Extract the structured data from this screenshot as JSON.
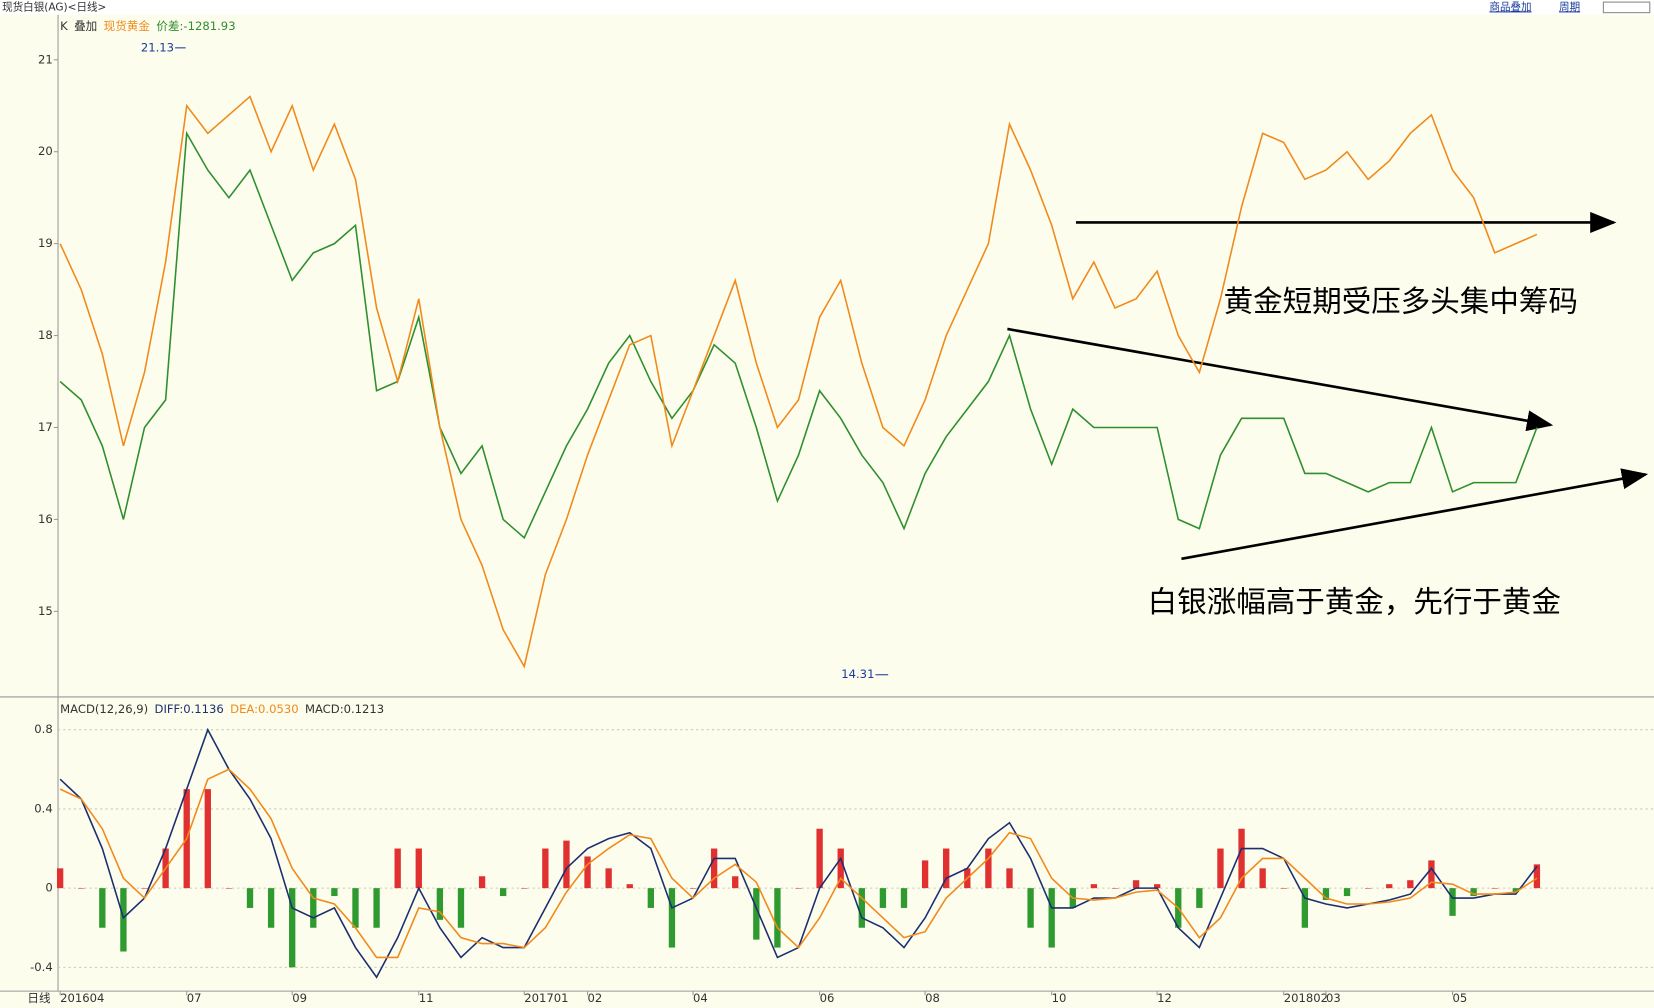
{
  "header": {
    "title": "现货白银(AG)<日线>",
    "buttons": [
      "商品叠加",
      "周期"
    ],
    "period_label": "日线"
  },
  "annotations": [
    "黄金短期受压多头集中筹码",
    "白银涨幅高于黄金，先行于黄金"
  ],
  "chart_data": [
    {
      "type": "line",
      "legend": [
        "K",
        "叠加",
        "现货黄金",
        "价差:-1281.93"
      ],
      "high_label": 21.13,
      "low_label": 14.31,
      "ylim": [
        14.08,
        21.49
      ],
      "yticks": [
        15,
        16,
        17,
        18,
        19,
        20,
        21
      ],
      "series": [
        {
          "color": "#2f8f2f",
          "values": [
            17.5,
            17.3,
            16.8,
            16.0,
            17.0,
            17.3,
            20.2,
            19.8,
            19.5,
            19.8,
            19.2,
            18.6,
            18.9,
            19.0,
            19.2,
            17.4,
            17.5,
            18.2,
            17.0,
            16.5,
            16.8,
            16.0,
            15.8,
            16.3,
            16.8,
            17.2,
            17.7,
            18.0,
            17.5,
            17.1,
            17.4,
            17.9,
            17.7,
            17.0,
            16.2,
            16.7,
            17.4,
            17.1,
            16.7,
            16.4,
            15.9,
            16.5,
            16.9,
            17.2,
            17.5,
            18.0,
            17.2,
            16.6,
            17.2,
            17.0,
            17.0,
            17.0,
            17.0,
            16.0,
            15.9,
            16.7,
            17.1,
            17.1,
            17.1,
            16.5,
            16.5,
            16.4,
            16.3,
            16.4,
            16.4,
            17.0,
            16.3,
            16.4,
            16.4,
            16.4,
            17.0,
            null,
            null,
            null,
            null,
            null
          ]
        },
        {
          "color": "#f08a1c",
          "values": [
            19.0,
            18.5,
            17.8,
            16.8,
            17.6,
            18.8,
            20.5,
            20.2,
            20.4,
            20.6,
            20.0,
            20.5,
            19.8,
            20.3,
            19.7,
            18.3,
            17.5,
            18.4,
            17.0,
            16.0,
            15.5,
            14.8,
            14.4,
            15.4,
            16.0,
            16.7,
            17.3,
            17.9,
            18.0,
            16.8,
            17.4,
            18.0,
            18.6,
            17.7,
            17.0,
            17.3,
            18.2,
            18.6,
            17.7,
            17.0,
            16.8,
            17.3,
            18.0,
            18.5,
            19.0,
            20.3,
            19.8,
            19.2,
            18.4,
            18.8,
            18.3,
            18.4,
            18.7,
            18.0,
            17.6,
            18.4,
            19.4,
            20.2,
            20.1,
            19.7,
            19.8,
            20.0,
            19.7,
            19.9,
            20.2,
            20.4,
            19.8,
            19.5,
            18.9,
            19.0,
            19.1,
            null,
            null,
            null,
            null,
            null
          ]
        }
      ]
    },
    {
      "type": "macd",
      "legend": [
        "MACD(12,26,9)",
        "DIFF:0.1136",
        "DEA:0.0530",
        "MACD:0.1213"
      ],
      "categories": [
        "201604",
        null,
        null,
        null,
        null,
        null,
        "07",
        null,
        null,
        null,
        null,
        "09",
        null,
        null,
        null,
        null,
        null,
        "11",
        null,
        null,
        null,
        null,
        "201701",
        null,
        null,
        "02",
        null,
        null,
        null,
        null,
        "04",
        null,
        null,
        null,
        null,
        null,
        "06",
        null,
        null,
        null,
        null,
        "08",
        null,
        null,
        null,
        null,
        null,
        "10",
        null,
        null,
        null,
        null,
        "12",
        null,
        null,
        null,
        null,
        null,
        "201802",
        null,
        "03",
        null,
        null,
        null,
        null,
        null,
        "05",
        null,
        null,
        null,
        null,
        null,
        null,
        null,
        null,
        null
      ],
      "ylim": [
        -0.52,
        0.96
      ],
      "yticks": [
        -0.4,
        0,
        0.4,
        0.8
      ],
      "grid": true,
      "up_color": "#e03030",
      "down_color": "#2f9a2f",
      "series": [
        {
          "color": "#1c2f70",
          "values": [
            0.55,
            0.45,
            0.2,
            -0.15,
            -0.05,
            0.2,
            0.5,
            0.8,
            0.6,
            0.45,
            0.25,
            -0.1,
            -0.15,
            -0.1,
            -0.3,
            -0.45,
            -0.25,
            0,
            -0.2,
            -0.35,
            -0.25,
            -0.3,
            -0.3,
            -0.1,
            0.1,
            0.2,
            0.25,
            0.28,
            0.2,
            -0.1,
            -0.05,
            0.15,
            0.15,
            -0.1,
            -0.35,
            -0.3,
            0,
            0.15,
            -0.15,
            -0.2,
            -0.3,
            -0.15,
            0.05,
            0.1,
            0.25,
            0.33,
            0.15,
            -0.1,
            -0.1,
            -0.05,
            -0.05,
            0,
            0,
            -0.2,
            -0.3,
            -0.05,
            0.2,
            0.2,
            0.15,
            -0.05,
            -0.08,
            -0.1,
            -0.08,
            -0.06,
            -0.03,
            0.1,
            -0.05,
            -0.05,
            -0.03,
            -0.03,
            0.11,
            null,
            null,
            null,
            null,
            null
          ]
        },
        {
          "color": "#f08a1c",
          "values": [
            0.5,
            0.45,
            0.3,
            0.05,
            -0.05,
            0.1,
            0.25,
            0.55,
            0.6,
            0.5,
            0.35,
            0.1,
            -0.05,
            -0.08,
            -0.2,
            -0.35,
            -0.35,
            -0.1,
            -0.12,
            -0.25,
            -0.28,
            -0.28,
            -0.3,
            -0.2,
            -0.02,
            0.12,
            0.2,
            0.27,
            0.25,
            0.05,
            -0.05,
            0.05,
            0.12,
            0.03,
            -0.2,
            -0.3,
            -0.15,
            0.05,
            -0.05,
            -0.15,
            -0.25,
            -0.22,
            -0.05,
            0.05,
            0.15,
            0.28,
            0.25,
            0.05,
            -0.05,
            -0.06,
            -0.05,
            -0.02,
            -0.01,
            -0.1,
            -0.25,
            -0.15,
            0.05,
            0.15,
            0.15,
            0.05,
            -0.05,
            -0.08,
            -0.08,
            -0.07,
            -0.05,
            0.03,
            0.02,
            -0.03,
            -0.03,
            -0.02,
            0.05,
            null,
            null,
            null,
            null,
            null
          ]
        },
        {
          "type": "bar",
          "values": [
            0.1,
            0,
            -0.2,
            -0.32,
            0,
            0.2,
            0.5,
            0.5,
            0,
            -0.1,
            -0.2,
            -0.4,
            -0.2,
            -0.04,
            -0.2,
            -0.2,
            0.2,
            0.2,
            -0.16,
            -0.2,
            0.06,
            -0.04,
            0,
            0.2,
            0.24,
            0.16,
            0.1,
            0.02,
            -0.1,
            -0.3,
            0,
            0.2,
            0.06,
            -0.26,
            -0.3,
            0,
            0.3,
            0.2,
            -0.2,
            -0.1,
            -0.1,
            0.14,
            0.2,
            0.1,
            0.2,
            0.1,
            -0.2,
            -0.3,
            -0.1,
            0.02,
            0,
            0.04,
            0.02,
            -0.2,
            -0.1,
            0.2,
            0.3,
            0.1,
            0,
            -0.2,
            -0.06,
            -0.04,
            0,
            0.02,
            0.04,
            0.14,
            -0.14,
            -0.04,
            0,
            -0.02,
            0.12,
            null,
            null,
            null,
            null,
            null
          ]
        }
      ]
    }
  ]
}
